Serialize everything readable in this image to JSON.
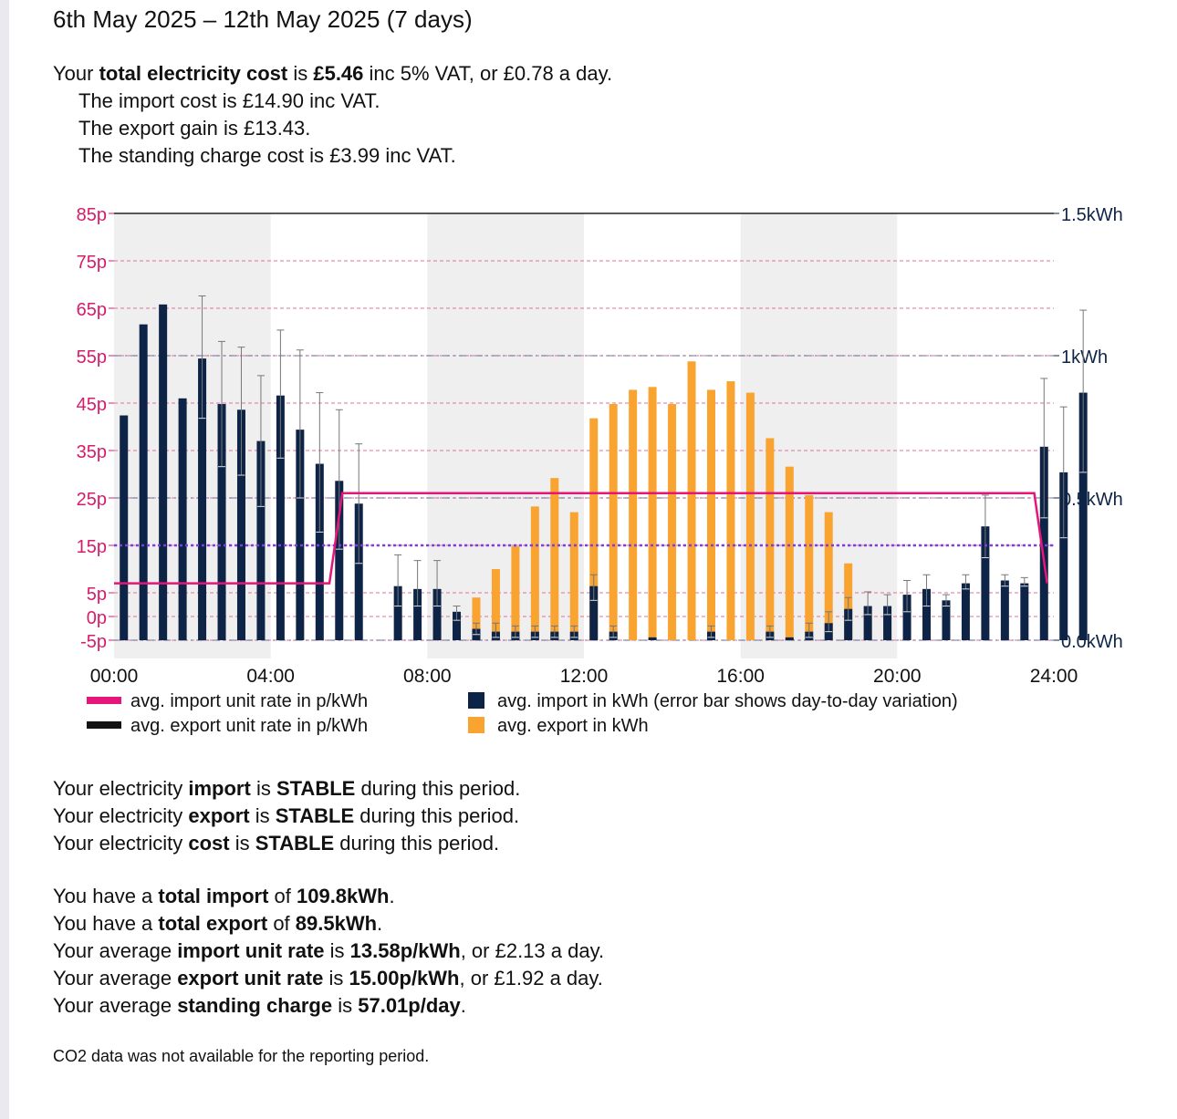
{
  "summary": {
    "title": "6th May 2025 – 12th May 2025 (7 days)",
    "cost": {
      "pre": "Your ",
      "b1": "total electricity cost",
      "mid": " is ",
      "b2": "£5.46",
      "post": " inc 5% VAT, or £0.78 a day."
    },
    "import_cost": "The import cost is £14.90 inc VAT.",
    "export_gain": "The export gain is £13.43.",
    "standing_cost": "The standing charge cost is £3.99 inc VAT."
  },
  "stability": [
    {
      "pre": "Your electricity ",
      "b1": "import",
      "mid": " is ",
      "b2": "STABLE",
      "post": " during this period."
    },
    {
      "pre": "Your electricity ",
      "b1": "export",
      "mid": " is ",
      "b2": "STABLE",
      "post": " during this period."
    },
    {
      "pre": "Your electricity ",
      "b1": "cost",
      "mid": " is ",
      "b2": "STABLE",
      "post": " during this period."
    }
  ],
  "totals": [
    {
      "pre": "You have a ",
      "b1": "total import",
      "mid": " of ",
      "b2": "109.8kWh",
      "post": "."
    },
    {
      "pre": "You have a ",
      "b1": "total export",
      "mid": " of ",
      "b2": "89.5kWh",
      "post": "."
    },
    {
      "pre": "Your average ",
      "b1": "import unit rate",
      "mid": " is ",
      "b2": "13.58p/kWh",
      "post": ", or £2.13 a day."
    },
    {
      "pre": "Your average ",
      "b1": "export unit rate",
      "mid": " is ",
      "b2": "15.00p/kWh",
      "post": ", or £1.92 a day."
    },
    {
      "pre": "Your average ",
      "b1": "standing charge",
      "mid": " is ",
      "b2": "57.01p/day",
      "post": "."
    }
  ],
  "co2_note": "CO2 data was not available for the reporting period.",
  "chart_data": {
    "type": "bar",
    "x_unit": "hours",
    "x_ticks": [
      {
        "label": "00:00",
        "value": 0
      },
      {
        "label": "04:00",
        "value": 4
      },
      {
        "label": "08:00",
        "value": 8
      },
      {
        "label": "12:00",
        "value": 12
      },
      {
        "label": "16:00",
        "value": 16
      },
      {
        "label": "20:00",
        "value": 20
      },
      {
        "label": "24:00",
        "value": 24
      }
    ],
    "xlim": [
      0,
      24
    ],
    "y_left": {
      "ticks": [
        {
          "label": "85p",
          "value": 85
        },
        {
          "label": "75p",
          "value": 75
        },
        {
          "label": "65p",
          "value": 65
        },
        {
          "label": "55p",
          "value": 55
        },
        {
          "label": "45p",
          "value": 45
        },
        {
          "label": "35p",
          "value": 35
        },
        {
          "label": "25p",
          "value": 25
        },
        {
          "label": "15p",
          "value": 15
        },
        {
          "label": "5p",
          "value": 5
        },
        {
          "label": "0p",
          "value": 0
        },
        {
          "label": "-5p",
          "value": -5
        }
      ],
      "lim": [
        -5,
        85
      ]
    },
    "y_right": {
      "ticks": [
        {
          "label": "1.5kWh",
          "value": 1.5
        },
        {
          "label": "1kWh",
          "value": 1.0
        },
        {
          "label": "0.5kWh",
          "value": 0.5
        },
        {
          "label": "0.0kWh",
          "value": 0.0
        }
      ],
      "lim": [
        0,
        1.5
      ]
    },
    "shaded_bands": [
      [
        0,
        4
      ],
      [
        8,
        12
      ],
      [
        16,
        20
      ]
    ],
    "legend": [
      {
        "label": "avg. import unit rate in p/kWh",
        "color": "#e6157a",
        "kind": "line"
      },
      {
        "label": "avg. export unit rate in p/kWh",
        "color": "#111111",
        "kind": "line"
      },
      {
        "label": "avg. import in kWh (error bar shows day-to-day variation)",
        "color": "#0e2447",
        "kind": "box"
      },
      {
        "label": "avg. export in kWh",
        "color": "#f9a330",
        "kind": "box"
      }
    ],
    "import_unit_rate": [
      {
        "x": 0,
        "y": 7
      },
      {
        "x": 5.5,
        "y": 7
      },
      {
        "x": 5.83,
        "y": 26
      },
      {
        "x": 23.5,
        "y": 26
      },
      {
        "x": 23.83,
        "y": 7
      }
    ],
    "export_unit_rate": 15,
    "colors": {
      "import": "#0e2447",
      "export": "#f9a330",
      "import_rate": "#e6157a",
      "export_rate": "#7b3fe4",
      "grid": "#e0709f",
      "left_axis": "#d61c6b",
      "right_axis": "#0e2447",
      "band": "#efefef"
    },
    "slots": [
      {
        "x": 0.25,
        "imp": 0.79
      },
      {
        "x": 0.75,
        "imp": 1.11
      },
      {
        "x": 1.25,
        "imp": 1.18
      },
      {
        "x": 1.75,
        "imp": 0.85
      },
      {
        "x": 2.25,
        "imp": 0.99,
        "err": [
          0.78,
          1.21
        ]
      },
      {
        "x": 2.75,
        "imp": 0.83,
        "err": [
          0.61,
          1.05
        ]
      },
      {
        "x": 3.25,
        "imp": 0.81,
        "err": [
          0.58,
          1.03
        ]
      },
      {
        "x": 3.75,
        "imp": 0.7,
        "err": [
          0.47,
          0.93
        ]
      },
      {
        "x": 4.25,
        "imp": 0.86,
        "err": [
          0.64,
          1.09
        ]
      },
      {
        "x": 4.75,
        "imp": 0.74,
        "err": [
          0.5,
          1.02
        ]
      },
      {
        "x": 5.25,
        "imp": 0.62,
        "err": [
          0.38,
          0.87
        ]
      },
      {
        "x": 5.75,
        "imp": 0.56,
        "err": [
          0.32,
          0.81
        ]
      },
      {
        "x": 6.25,
        "imp": 0.48,
        "err": [
          0.27,
          0.69
        ]
      },
      {
        "x": 7.25,
        "imp": 0.19,
        "err": [
          0.12,
          0.3
        ]
      },
      {
        "x": 7.75,
        "imp": 0.18,
        "err": [
          0.12,
          0.28
        ],
        "exp": 0.01
      },
      {
        "x": 8.25,
        "imp": 0.18,
        "err": [
          0.12,
          0.28
        ],
        "exp": 0.04
      },
      {
        "x": 8.75,
        "imp": 0.1,
        "err": [
          0.07,
          0.12
        ],
        "exp": 0.08
      },
      {
        "x": 9.25,
        "imp": 0.04,
        "err": [
          0.02,
          0.06
        ],
        "exp": 0.15
      },
      {
        "x": 9.75,
        "imp": 0.03,
        "err": [
          0.01,
          0.06
        ],
        "exp": 0.25
      },
      {
        "x": 10.25,
        "imp": 0.03,
        "err": [
          0.01,
          0.05
        ],
        "exp": 0.33
      },
      {
        "x": 10.75,
        "imp": 0.03,
        "err": [
          0.01,
          0.05
        ],
        "exp": 0.47
      },
      {
        "x": 11.25,
        "imp": 0.03,
        "err": [
          0.01,
          0.05
        ],
        "exp": 0.57
      },
      {
        "x": 11.75,
        "imp": 0.03,
        "err": [
          0.01,
          0.05
        ],
        "exp": 0.45
      },
      {
        "x": 12.25,
        "imp": 0.19,
        "err": [
          0.14,
          0.23
        ],
        "exp": 0.78
      },
      {
        "x": 12.75,
        "imp": 0.03,
        "err": [
          0.01,
          0.05
        ],
        "exp": 0.83
      },
      {
        "x": 13.25,
        "exp": 0.88
      },
      {
        "x": 13.75,
        "imp": 0.01,
        "exp": 0.89
      },
      {
        "x": 14.25,
        "exp": 0.83
      },
      {
        "x": 14.75,
        "exp": 0.98
      },
      {
        "x": 15.25,
        "imp": 0.03,
        "err": [
          0.01,
          0.05
        ],
        "exp": 0.88
      },
      {
        "x": 15.75,
        "exp": 0.91
      },
      {
        "x": 16.25,
        "exp": 0.87
      },
      {
        "x": 16.75,
        "imp": 0.03,
        "err": [
          0.01,
          0.05
        ],
        "exp": 0.71
      },
      {
        "x": 17.25,
        "imp": 0.01,
        "exp": 0.61
      },
      {
        "x": 17.75,
        "imp": 0.03,
        "err": [
          0.01,
          0.06
        ],
        "exp": 0.51
      },
      {
        "x": 18.25,
        "imp": 0.06,
        "err": [
          0.03,
          0.1
        ],
        "exp": 0.45
      },
      {
        "x": 18.75,
        "imp": 0.11,
        "err": [
          0.07,
          0.15
        ],
        "exp": 0.27
      },
      {
        "x": 19.25,
        "imp": 0.12,
        "err": [
          0.09,
          0.17
        ],
        "exp": 0.08
      },
      {
        "x": 19.75,
        "imp": 0.12,
        "err": [
          0.09,
          0.16
        ],
        "exp": 0.08
      },
      {
        "x": 20.25,
        "imp": 0.16,
        "err": [
          0.1,
          0.21
        ]
      },
      {
        "x": 20.75,
        "imp": 0.18,
        "err": [
          0.12,
          0.23
        ]
      },
      {
        "x": 21.25,
        "imp": 0.14,
        "err": [
          0.12,
          0.16
        ]
      },
      {
        "x": 21.75,
        "imp": 0.2,
        "err": [
          0.18,
          0.23
        ]
      },
      {
        "x": 22.25,
        "imp": 0.4,
        "err": [
          0.29,
          0.51
        ]
      },
      {
        "x": 22.75,
        "imp": 0.21,
        "err": [
          0.19,
          0.23
        ]
      },
      {
        "x": 23.25,
        "imp": 0.2,
        "err": [
          0.19,
          0.22
        ]
      },
      {
        "x": 23.75,
        "imp": 0.68,
        "err": [
          0.43,
          0.92
        ]
      },
      {
        "x": 24.25,
        "imp": 0.59,
        "err": [
          0.36,
          0.82
        ]
      },
      {
        "x": 24.75,
        "imp": 0.87,
        "err": [
          0.59,
          1.16
        ]
      }
    ]
  }
}
